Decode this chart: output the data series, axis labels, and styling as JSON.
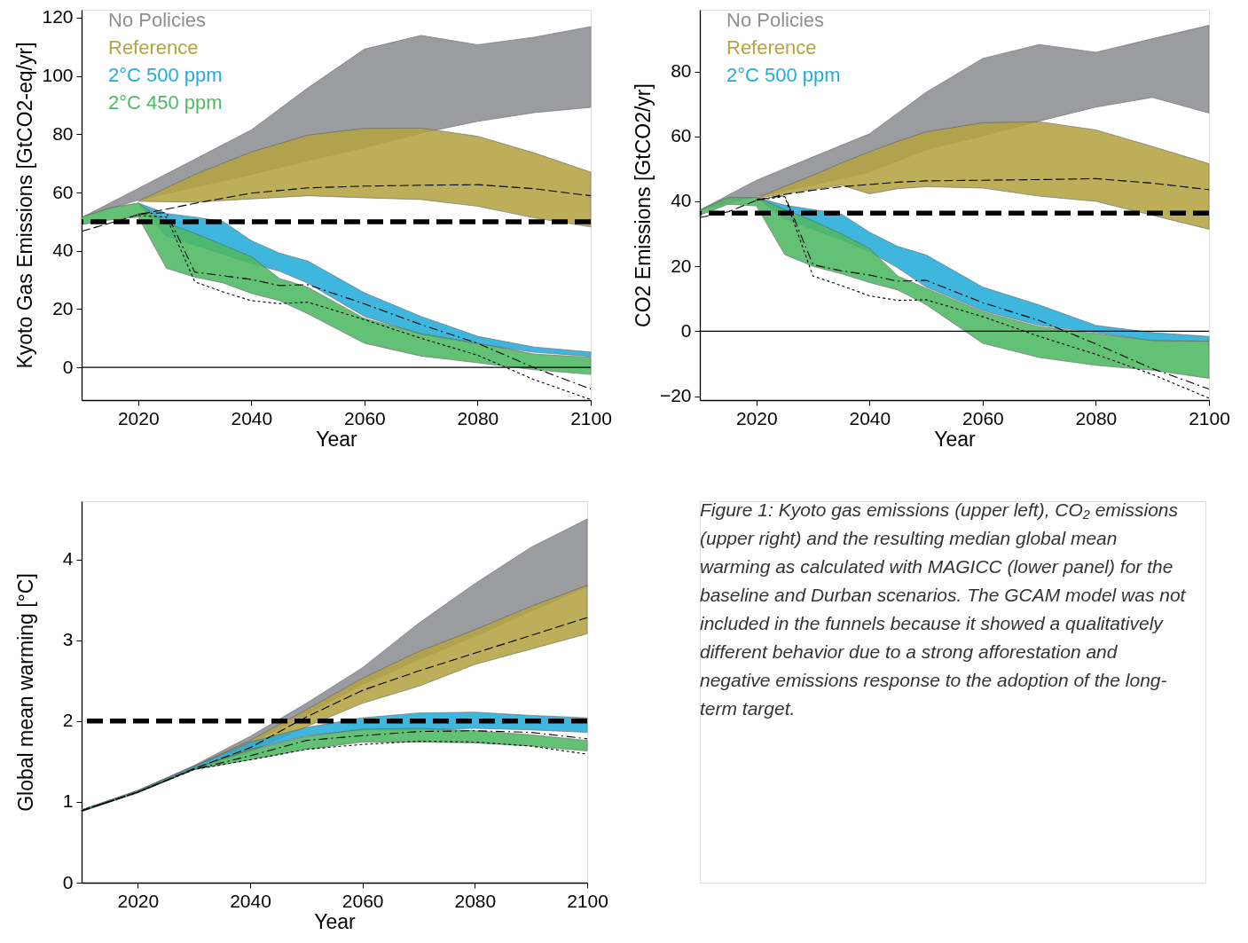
{
  "chart_data": [
    {
      "type": "area",
      "xlabel": "Year",
      "ylabel": "Kyoto Gas Emissions [GtCO2-eq/yr]",
      "xlim": [
        2010,
        2100
      ],
      "xticks": [
        2020,
        2040,
        2060,
        2080,
        2100
      ],
      "ylim": [
        -11.2,
        122.7
      ],
      "yticks": [
        0,
        20,
        40,
        60,
        80,
        100,
        120
      ],
      "ref_lines": [
        {
          "axis": "y",
          "value": 50,
          "line_style": "dashed",
          "color": "#000000"
        },
        {
          "axis": "y",
          "value": 0,
          "line_style": "solid",
          "color": "#000000"
        }
      ],
      "series": [
        {
          "name": "No Policies",
          "type": "area",
          "color": "#8e8f93",
          "x": [
            2010,
            2020,
            2030,
            2040,
            2050,
            2060,
            2070,
            2080,
            2090,
            2100
          ],
          "values": [
            null,
            null,
            null,
            null,
            null,
            null,
            null,
            null,
            null,
            null
          ],
          "upper": [
            51.4,
            61.4,
            71.4,
            81.5,
            95.9,
            109.2,
            113.9,
            110.7,
            113.3,
            116.9
          ],
          "lower": [
            51.4,
            57.4,
            61.8,
            66.2,
            70.9,
            75.4,
            80.4,
            84.4,
            87.4,
            89.2
          ]
        },
        {
          "name": "Reference",
          "type": "area",
          "color": "#b5a443",
          "x": [
            2020,
            2030,
            2040,
            2050,
            2060,
            2070,
            2080,
            2090,
            2100
          ],
          "values": [
            null,
            null,
            null,
            null,
            null,
            null,
            null,
            null,
            null
          ],
          "upper": [
            57.0,
            66.2,
            73.9,
            79.7,
            82.0,
            82.1,
            79.3,
            73.6,
            67.0
          ],
          "lower": [
            57.0,
            56.7,
            57.8,
            58.9,
            58.2,
            57.6,
            55.3,
            51.3,
            48.2
          ]
        },
        {
          "name": "2°C 500 ppm",
          "type": "area",
          "color": "#24acd9",
          "x": [
            2020,
            2025,
            2030,
            2035,
            2040,
            2045,
            2050,
            2060,
            2070,
            2080,
            2090,
            2100
          ],
          "values": [
            null,
            null,
            null,
            null,
            null,
            null,
            null,
            null,
            null,
            null,
            null,
            null
          ],
          "upper": [
            56.4,
            52.8,
            51.6,
            50.1,
            43.5,
            39.2,
            36.5,
            25.6,
            17.5,
            10.7,
            7.0,
            5.3
          ],
          "lower": [
            56.4,
            45.0,
            42.0,
            38.8,
            35.7,
            33.0,
            28.9,
            17.5,
            11.4,
            8.0,
            5.2,
            3.8
          ]
        },
        {
          "name": "2°C 450 ppm",
          "type": "area",
          "color": "#4eb964",
          "x": [
            2010,
            2015,
            2020,
            2025,
            2030,
            2035,
            2040,
            2045,
            2050,
            2060,
            2070,
            2080,
            2090,
            2100
          ],
          "values": [
            null,
            null,
            null,
            null,
            null,
            null,
            null,
            null,
            null,
            null,
            null,
            null,
            null,
            null
          ],
          "upper": [
            51.6,
            54.8,
            56.4,
            49.5,
            46.0,
            42.0,
            38.0,
            30.5,
            27.5,
            16.8,
            11.6,
            8.3,
            4.6,
            3.5
          ],
          "lower": [
            49.0,
            50.6,
            51.6,
            34.0,
            31.0,
            29.0,
            25.4,
            22.9,
            18.4,
            8.3,
            3.9,
            1.6,
            -0.8,
            -2.4
          ]
        },
        {
          "type": "line",
          "color": "#000000",
          "line_style": "dashed",
          "x": [
            2010,
            2015,
            2020,
            2025,
            2030,
            2040,
            2050,
            2060,
            2070,
            2080,
            2090,
            2100
          ],
          "values": [
            46.7,
            49.5,
            52.4,
            54.3,
            56.3,
            59.8,
            61.6,
            62.2,
            62.5,
            62.7,
            61.3,
            58.9
          ]
        },
        {
          "type": "line",
          "color": "#000000",
          "line_style": "dashdot",
          "x": [
            2020,
            2025,
            2030,
            2040,
            2045,
            2050,
            2060,
            2070,
            2080,
            2090,
            2100
          ],
          "values": [
            52.6,
            53.1,
            32.7,
            30.2,
            28.1,
            28.4,
            21.8,
            14.7,
            8.3,
            -0.1,
            -7.4
          ]
        },
        {
          "type": "line",
          "color": "#000000",
          "line_style": "dotted",
          "x": [
            2020,
            2025,
            2030,
            2035,
            2040,
            2045,
            2050,
            2060,
            2070,
            2080,
            2090,
            2100
          ],
          "values": [
            52.1,
            51.6,
            29.4,
            25.9,
            22.9,
            21.9,
            22.4,
            16.4,
            10.0,
            4.2,
            -4.2,
            -11.0
          ]
        }
      ]
    },
    {
      "type": "area",
      "xlabel": "Year",
      "ylabel": "CO2 Emissions [GtCO2/yr]",
      "xlim": [
        2010,
        2100
      ],
      "xticks": [
        2020,
        2040,
        2060,
        2080,
        2100
      ],
      "ylim": [
        -21.2,
        99
      ],
      "yticks": [
        -20,
        0,
        20,
        40,
        60,
        80
      ],
      "ref_lines": [
        {
          "axis": "y",
          "value": 36.4,
          "line_style": "dashed",
          "color": "#000000"
        },
        {
          "axis": "y",
          "value": 0,
          "line_style": "solid",
          "color": "#000000"
        }
      ],
      "series": [
        {
          "name": "No Policies",
          "type": "area",
          "color": "#8e8f93",
          "x": [
            2010,
            2020,
            2030,
            2040,
            2050,
            2060,
            2070,
            2080,
            2090,
            2100
          ],
          "values": [
            null,
            null,
            null,
            null,
            null,
            null,
            null,
            null,
            null,
            null
          ],
          "upper": [
            37.3,
            46.5,
            53.7,
            60.8,
            73.6,
            84.0,
            88.3,
            85.9,
            90.1,
            94.2
          ],
          "lower": [
            37.3,
            41.5,
            45.0,
            49.0,
            55.9,
            60.1,
            64.7,
            69.0,
            72.0,
            67.2
          ]
        },
        {
          "name": "Reference",
          "type": "area",
          "color": "#b5a443",
          "x": [
            2020,
            2025,
            2030,
            2035,
            2040,
            2045,
            2050,
            2060,
            2070,
            2080,
            2090,
            2100
          ],
          "values": [
            null,
            null,
            null,
            null,
            null,
            null,
            null,
            null,
            null,
            null,
            null,
            null
          ],
          "upper": [
            41.0,
            44.6,
            48.0,
            51.8,
            55.3,
            58.5,
            61.4,
            64.2,
            64.5,
            62.0,
            56.9,
            51.6
          ],
          "lower": [
            41.0,
            42.3,
            43.6,
            45.0,
            42.3,
            43.9,
            44.5,
            44.1,
            41.6,
            40.0,
            35.7,
            31.4
          ]
        },
        {
          "name": "2°C 500 ppm",
          "type": "area",
          "color": "#24acd9",
          "x": [
            2020,
            2025,
            2030,
            2035,
            2040,
            2045,
            2050,
            2060,
            2070,
            2080,
            2090,
            2100
          ],
          "values": [
            null,
            null,
            null,
            null,
            null,
            null,
            null,
            null,
            null,
            null,
            null,
            null
          ],
          "upper": [
            41.2,
            38.8,
            37.5,
            36.1,
            30.5,
            26.1,
            23.5,
            13.6,
            8.1,
            1.8,
            -0.4,
            -1.6
          ],
          "lower": [
            41.2,
            34.5,
            31.4,
            28.2,
            24.5,
            19.5,
            13.6,
            6.3,
            1.8,
            -0.4,
            -2.9,
            -3.1
          ]
        },
        {
          "type": "area",
          "color": "#4eb964",
          "x": [
            2010,
            2015,
            2020,
            2025,
            2030,
            2035,
            2040,
            2045,
            2050,
            2060,
            2070,
            2080,
            2090,
            2100
          ],
          "values": [
            null,
            null,
            null,
            null,
            null,
            null,
            null,
            null,
            null,
            null,
            null,
            null,
            null,
            null
          ],
          "upper": [
            37.3,
            41.2,
            41.2,
            37.5,
            34.0,
            30.0,
            25.5,
            17.0,
            13.2,
            6.0,
            1.4,
            -0.7,
            -2.9,
            -3.1
          ],
          "lower": [
            35.7,
            39.1,
            38.6,
            23.6,
            20.0,
            17.7,
            15.0,
            12.7,
            8.2,
            -3.7,
            -8.1,
            -10.5,
            -12.0,
            -14.5
          ]
        },
        {
          "type": "line",
          "color": "#000000",
          "line_style": "dashed",
          "x": [
            2010,
            2015,
            2020,
            2025,
            2030,
            2035,
            2040,
            2045,
            2050,
            2060,
            2070,
            2080,
            2090,
            2100
          ],
          "values": [
            35.0,
            36.8,
            40.3,
            42.1,
            43.4,
            44.5,
            45.2,
            45.9,
            46.3,
            46.5,
            46.7,
            47.0,
            45.6,
            43.6
          ]
        },
        {
          "type": "line",
          "color": "#000000",
          "line_style": "dashdot",
          "x": [
            2020,
            2025,
            2030,
            2035,
            2040,
            2045,
            2050,
            2060,
            2070,
            2080,
            2090,
            2100
          ],
          "values": [
            40.5,
            41.8,
            20.5,
            18.6,
            17.3,
            15.4,
            15.7,
            8.8,
            3.3,
            -3.9,
            -11.5,
            -17.8
          ]
        },
        {
          "type": "line",
          "color": "#000000",
          "line_style": "dotted",
          "x": [
            2020,
            2025,
            2030,
            2035,
            2040,
            2045,
            2050,
            2060,
            2070,
            2080,
            2090,
            2100
          ],
          "values": [
            40.3,
            41.5,
            17.0,
            14.1,
            10.9,
            9.5,
            9.7,
            4.5,
            -1.6,
            -7.1,
            -13.3,
            -20.6
          ]
        }
      ]
    },
    {
      "type": "area",
      "xlabel": "Year",
      "ylabel": "Global mean warming [°C]",
      "xlim": [
        2010,
        2100
      ],
      "xticks": [
        2020,
        2040,
        2060,
        2080,
        2100
      ],
      "ylim": [
        0,
        4.72
      ],
      "yticks": [
        0,
        1,
        2,
        3,
        4
      ],
      "ref_lines": [
        {
          "axis": "y",
          "value": 2,
          "line_style": "dashed",
          "color": "#000000"
        }
      ],
      "series": [
        {
          "type": "area",
          "color": "#8e8f93",
          "x": [
            2010,
            2020,
            2030,
            2040,
            2050,
            2060,
            2070,
            2080,
            2090,
            2100
          ],
          "values": [
            null,
            null,
            null,
            null,
            null,
            null,
            null,
            null,
            null,
            null
          ],
          "upper": [
            0.9,
            1.14,
            1.45,
            1.81,
            2.22,
            2.66,
            3.21,
            3.7,
            4.15,
            4.5
          ],
          "lower": [
            0.9,
            1.13,
            1.42,
            1.72,
            2.08,
            2.45,
            2.76,
            3.05,
            3.36,
            3.66
          ]
        },
        {
          "type": "area",
          "color": "#b5a443",
          "x": [
            2010,
            2020,
            2030,
            2040,
            2050,
            2060,
            2070,
            2080,
            2090,
            2100
          ],
          "values": [
            null,
            null,
            null,
            null,
            null,
            null,
            null,
            null,
            null,
            null
          ],
          "upper": [
            0.9,
            1.14,
            1.44,
            1.76,
            2.14,
            2.53,
            2.86,
            3.13,
            3.42,
            3.68
          ],
          "lower": [
            0.88,
            1.12,
            1.4,
            1.62,
            1.93,
            2.22,
            2.43,
            2.7,
            2.89,
            3.08
          ]
        },
        {
          "type": "area",
          "color": "#24acd9",
          "x": [
            2010,
            2020,
            2030,
            2040,
            2050,
            2060,
            2070,
            2080,
            2090,
            2100
          ],
          "values": [
            null,
            null,
            null,
            null,
            null,
            null,
            null,
            null,
            null,
            null
          ],
          "upper": [
            0.9,
            1.14,
            1.44,
            1.74,
            1.92,
            2.04,
            2.1,
            2.11,
            2.07,
            2.04
          ],
          "lower": [
            0.89,
            1.12,
            1.41,
            1.65,
            1.82,
            1.89,
            1.89,
            1.91,
            1.89,
            1.86
          ]
        },
        {
          "type": "area",
          "color": "#4eb964",
          "x": [
            2010,
            2020,
            2030,
            2040,
            2050,
            2060,
            2070,
            2080,
            2090,
            2100
          ],
          "values": [
            null,
            null,
            null,
            null,
            null,
            null,
            null,
            null,
            null,
            null
          ],
          "upper": [
            0.9,
            1.13,
            1.42,
            1.64,
            1.81,
            1.9,
            1.91,
            1.88,
            1.83,
            1.76
          ],
          "lower": [
            0.88,
            1.11,
            1.4,
            1.52,
            1.65,
            1.74,
            1.74,
            1.73,
            1.69,
            1.63
          ]
        },
        {
          "type": "line",
          "color": "#000000",
          "line_style": "dashed",
          "x": [
            2010,
            2020,
            2030,
            2040,
            2050,
            2060,
            2070,
            2080,
            2090,
            2100
          ],
          "values": [
            0.89,
            1.12,
            1.41,
            1.67,
            2.05,
            2.38,
            2.62,
            2.84,
            3.06,
            3.28
          ]
        },
        {
          "type": "line",
          "color": "#000000",
          "line_style": "dashdot",
          "x": [
            2010,
            2020,
            2030,
            2040,
            2050,
            2060,
            2070,
            2080,
            2090,
            2100
          ],
          "values": [
            0.89,
            1.12,
            1.4,
            1.57,
            1.76,
            1.82,
            1.87,
            1.88,
            1.86,
            1.78
          ]
        },
        {
          "type": "line",
          "color": "#000000",
          "line_style": "dotted",
          "x": [
            2010,
            2020,
            2030,
            2040,
            2050,
            2060,
            2070,
            2080,
            2090,
            2100
          ],
          "values": [
            0.89,
            1.12,
            1.4,
            1.52,
            1.65,
            1.71,
            1.75,
            1.74,
            1.69,
            1.59
          ]
        }
      ]
    },
    {
      "type": "other",
      "annotations": [
        "Figure 1: Kyoto gas emissions (upper left), CO₂ emissions (upper right) and the resulting median global mean warming as calculated with MAGICC (lower panel) for the baseline and Durban scenarios. The GCAM model was not included in the funnels because it showed a qualitatively different behavior due to a strong afforestation and negative emissions response to the adoption of the long-term target."
      ]
    }
  ]
}
